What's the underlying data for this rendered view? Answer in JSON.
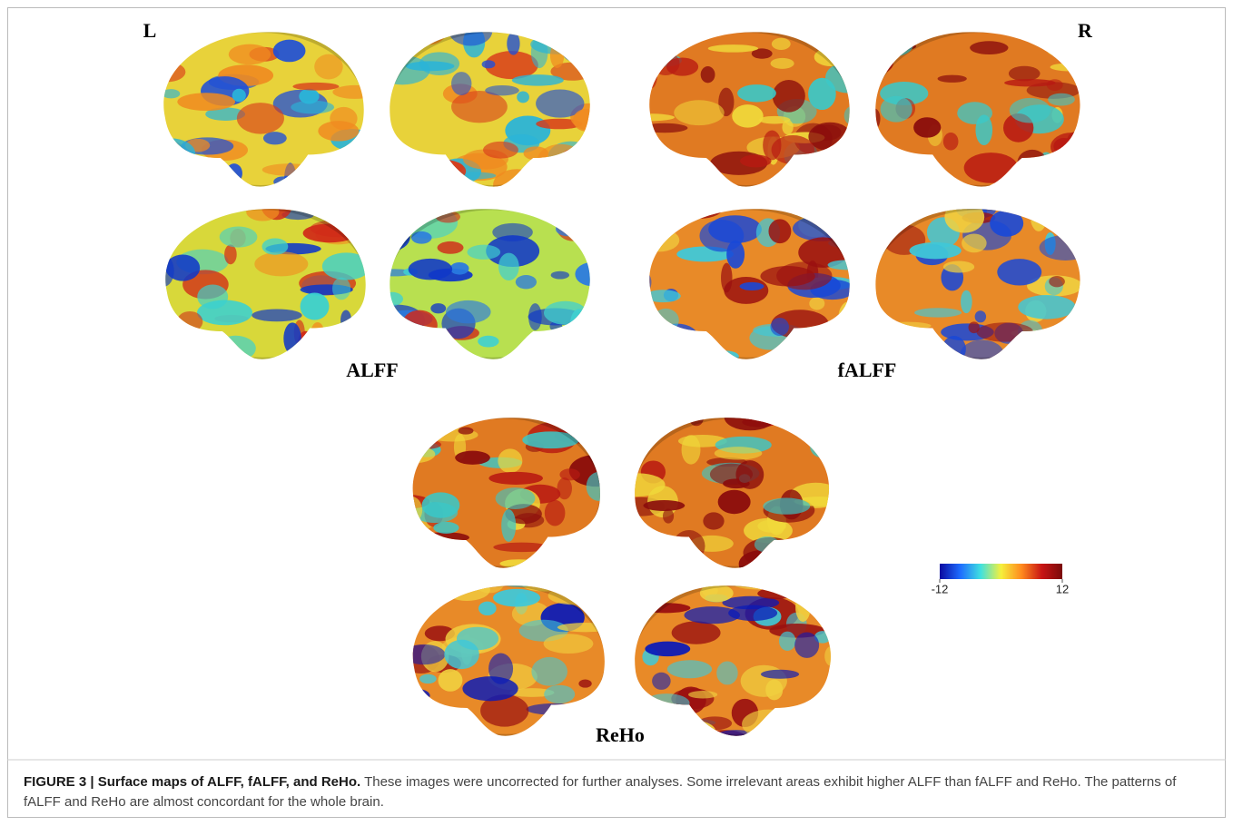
{
  "figure": {
    "side_left": "L",
    "side_right": "R",
    "panels": [
      "ALFF",
      "fALFF",
      "ReHo"
    ],
    "colorbar": {
      "ticks": [
        -12,
        12
      ],
      "colors": [
        "#0a0aa0",
        "#1e6cff",
        "#3fe0e0",
        "#f5f03c",
        "#ff8a1e",
        "#c81414",
        "#7a0a0a"
      ]
    }
  },
  "caption": {
    "lead": "FIGURE 3 | Surface maps of ALFF, fALFF, and ReHo.",
    "text": " These images were uncorrected for further analyses. Some irrelevant areas exhibit higher ALFF than fALFF and ReHo. The patterns of fALFF and ReHo are almost concordant for the whole brain."
  }
}
